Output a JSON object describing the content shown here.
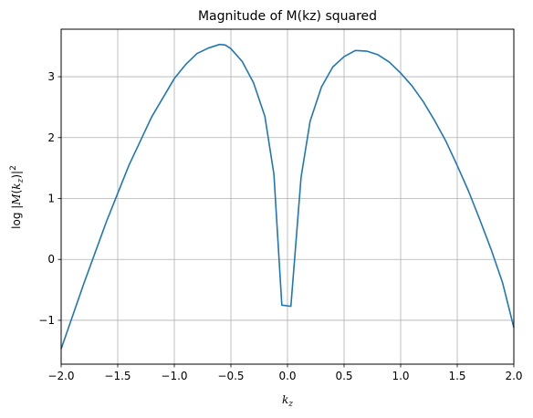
{
  "chart_data": {
    "type": "line",
    "title": "Magnitude of M(kz) squared",
    "xlabel": {
      "base": "k",
      "sub": "z"
    },
    "ylabel": {
      "prefix": "log |",
      "sym": "M",
      "open": "(",
      "base": "k",
      "sub": "z",
      "close": ")|",
      "sup": "2"
    },
    "xlim": [
      -2.0,
      2.0
    ],
    "ylim": [
      -1.72,
      3.78
    ],
    "xticks": [
      -2.0,
      -1.5,
      -1.0,
      -0.5,
      0.0,
      0.5,
      1.0,
      1.5,
      2.0
    ],
    "xtick_labels": [
      "−2.0",
      "−1.5",
      "−1.0",
      "−0.5",
      "0.0",
      "0.5",
      "1.0",
      "1.5",
      "2.0"
    ],
    "yticks": [
      -1,
      0,
      1,
      2,
      3
    ],
    "ytick_labels": [
      "−1",
      "0",
      "1",
      "2",
      "3"
    ],
    "grid": true,
    "line_color": "#1f77b4",
    "series": [
      {
        "x": [
          -2.0,
          -1.8,
          -1.6,
          -1.4,
          -1.2,
          -1.0,
          -0.9,
          -0.8,
          -0.7,
          -0.6,
          -0.55,
          -0.5,
          -0.4,
          -0.3,
          -0.2,
          -0.12,
          -0.05,
          0.03,
          0.12,
          0.2,
          0.3,
          0.4,
          0.5,
          0.6,
          0.7,
          0.8,
          0.9,
          1.0,
          1.1,
          1.2,
          1.3,
          1.4,
          1.5,
          1.6,
          1.7,
          1.8,
          1.9,
          2.0
        ],
        "y": [
          -1.47,
          -0.4,
          0.62,
          1.55,
          2.34,
          2.97,
          3.2,
          3.38,
          3.47,
          3.53,
          3.52,
          3.46,
          3.25,
          2.9,
          2.35,
          1.4,
          -0.75,
          -0.77,
          1.35,
          2.27,
          2.83,
          3.16,
          3.33,
          3.43,
          3.42,
          3.36,
          3.24,
          3.06,
          2.85,
          2.59,
          2.28,
          1.94,
          1.54,
          1.12,
          0.65,
          0.16,
          -0.38,
          -1.12
        ]
      }
    ]
  }
}
